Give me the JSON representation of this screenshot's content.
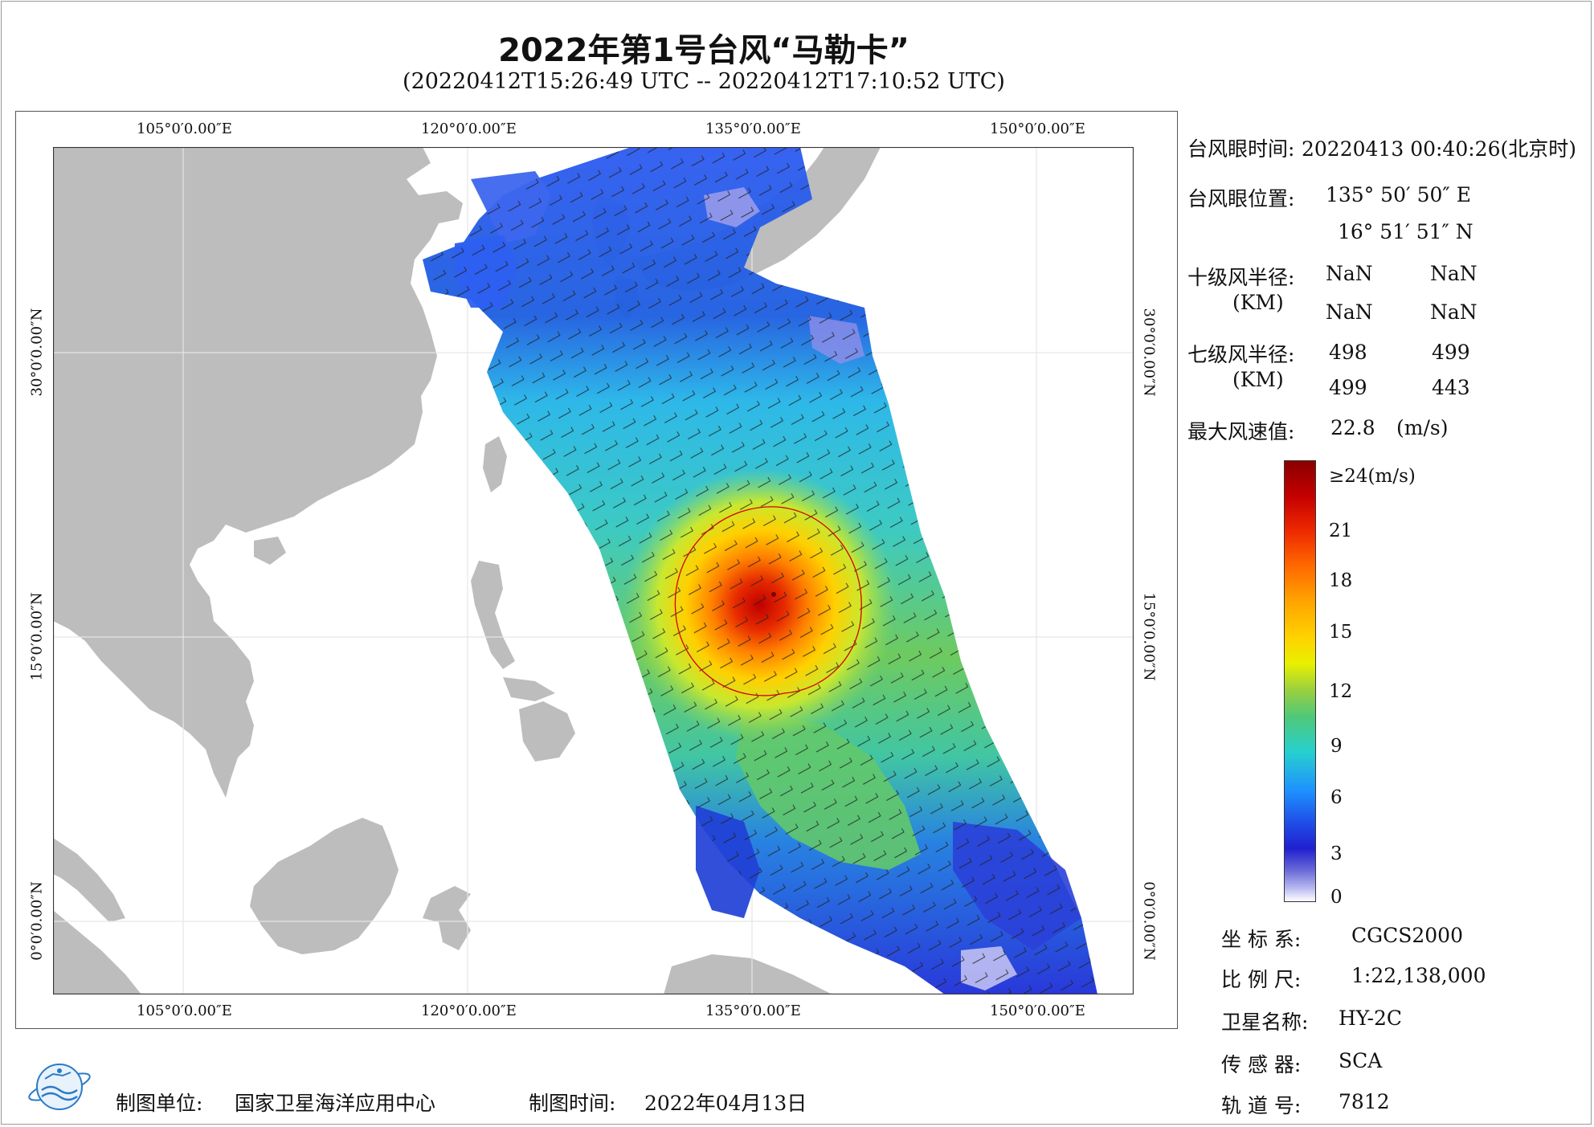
{
  "title": "2022年第1号台风“马勒卡”",
  "subtitle": "(20220412T15:26:49 UTC -- 20220412T17:10:52 UTC)",
  "map": {
    "lon_ticks": [
      "105°0′0.00″E",
      "120°0′0.00″E",
      "135°0′0.00″E",
      "150°0′0.00″E"
    ],
    "lat_ticks": [
      "30°0′0.00″N",
      "15°0′0.00″N",
      "0°0′0.00″N"
    ],
    "colors": {
      "land": "#bdbdbd",
      "ocean": "#ffffff",
      "grid": "#e6e6e6",
      "radius_circle": "#d40000"
    }
  },
  "info": {
    "eye_time_label": "台风眼时间:",
    "eye_time_value": "20220413 00:40:26(北京时)",
    "eye_pos_label": "台风眼位置:",
    "eye_lon": "135° 50′ 50″ E",
    "eye_lat": "16° 51′ 51″ N",
    "r10_label": "十级风半径:",
    "r10_unit": "(KM)",
    "r10_values": [
      "NaN",
      "NaN",
      "NaN",
      "NaN"
    ],
    "r7_label": "七级风半径:",
    "r7_unit": "(KM)",
    "r7_values": [
      "498",
      "499",
      "499",
      "443"
    ],
    "max_wind_label": "最大风速值:",
    "max_wind_value": "22.8",
    "max_wind_unit": "(m/s)"
  },
  "legend": {
    "labels": [
      "≥24(m/s)",
      "21",
      "18",
      "15",
      "12",
      "9",
      "6",
      "3",
      "0"
    ],
    "stops": [
      24,
      21,
      18,
      15,
      12,
      9,
      6,
      3,
      0
    ]
  },
  "meta": {
    "crs_label": "坐 标 系:",
    "crs_value": "CGCS2000",
    "scale_label": "比 例 尺:",
    "scale_value": "1:22,138,000",
    "satellite_label": "卫星名称:",
    "satellite_value": "HY-2C",
    "sensor_label": "传 感 器:",
    "sensor_value": "SCA",
    "orbit_label": "轨 道 号:",
    "orbit_value": "7812"
  },
  "footer": {
    "unit_label": "制图单位:",
    "unit_value": "国家卫星海洋应用中心",
    "date_label": "制图时间:",
    "date_value": "2022年04月13日"
  }
}
